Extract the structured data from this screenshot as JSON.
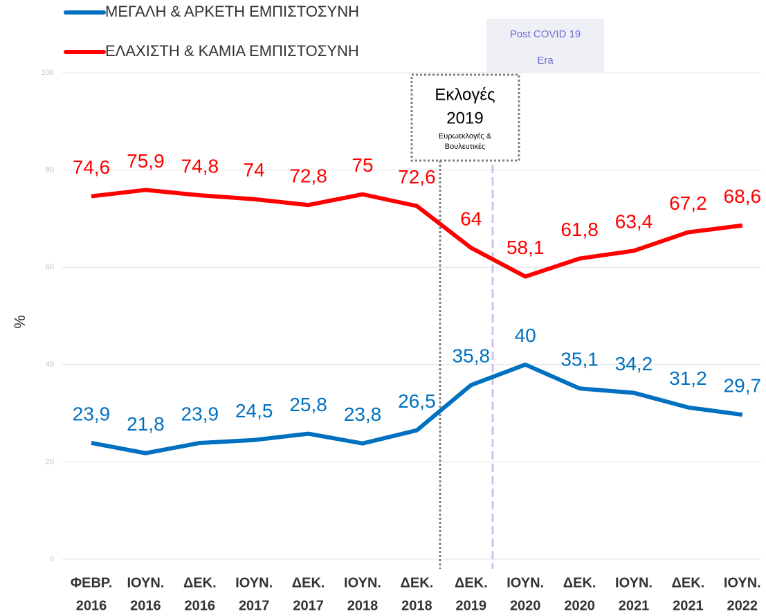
{
  "chart_data": {
    "type": "line",
    "y_label": "%",
    "categories": [
      [
        "ΦΕΒΡ.",
        "2016"
      ],
      [
        "ΙΟΥΝ.",
        "2016"
      ],
      [
        "ΔΕΚ.",
        "2016"
      ],
      [
        "ΙΟΥΝ.",
        "2017"
      ],
      [
        "ΔΕΚ.",
        "2017"
      ],
      [
        "ΙΟΥΝ.",
        "2018"
      ],
      [
        "ΔΕΚ.",
        "2018"
      ],
      [
        "ΔΕΚ.",
        "2019"
      ],
      [
        "ΙΟΥΝ.",
        "2020"
      ],
      [
        "ΔΕΚ.",
        "2020"
      ],
      [
        "ΙΟΥΝ.",
        "2021"
      ],
      [
        "ΔΕΚ.",
        "2021"
      ],
      [
        "ΙΟΥΝ.",
        "2022"
      ]
    ],
    "series": [
      {
        "name": "ΜΕΓΑΛΗ & ΑΡΚΕΤΗ ΕΜΠΙΣΤΟΣΥΝΗ",
        "color": "#0070c0",
        "values": [
          23.9,
          21.8,
          23.9,
          24.5,
          25.8,
          23.8,
          26.5,
          35.8,
          40,
          35.1,
          34.2,
          31.2,
          29.7
        ],
        "value_labels": [
          "23,9",
          "21,8",
          "23,9",
          "24,5",
          "25,8",
          "23,8",
          "26,5",
          "35,8",
          "40",
          "35,1",
          "34,2",
          "31,2",
          "29,7"
        ]
      },
      {
        "name": "ΕΛΑΧΙΣΤΗ & ΚΑΜΙΑ ΕΜΠΙΣΤΟΣΥΝΗ",
        "color": "#ff0000",
        "values": [
          74.6,
          75.9,
          74.8,
          74,
          72.8,
          75,
          72.6,
          64,
          58.1,
          61.8,
          63.4,
          67.2,
          68.6
        ],
        "value_labels": [
          "74,6",
          "75,9",
          "74,8",
          "74",
          "72,8",
          "75",
          "72,6",
          "64",
          "58,1",
          "61,8",
          "63,4",
          "67,2",
          "68,6"
        ]
      }
    ],
    "ylim": [
      0,
      100
    ],
    "yticks": [
      0,
      20,
      40,
      60,
      80,
      100
    ],
    "grid": true,
    "annotations": [
      {
        "title": "Εκλογές",
        "year": "2019",
        "lines": [
          "Ευρωεκλογές &",
          "Βουλευτικές"
        ]
      },
      {
        "lines": [
          "Post  COVID 19",
          "Era"
        ]
      }
    ]
  }
}
